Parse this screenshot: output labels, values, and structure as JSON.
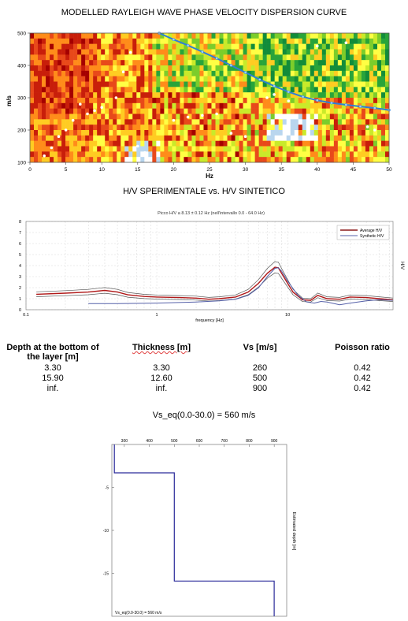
{
  "dispersion": {
    "title": "MODELLED RAYLEIGH WAVE PHASE VELOCITY DISPERSION CURVE",
    "ylabel": "m/s",
    "xlabel": "Hz",
    "yticks": [
      "500",
      "400",
      "300",
      "200",
      "100"
    ],
    "xticks": [
      "0",
      "5",
      "10",
      "15",
      "20",
      "25",
      "30",
      "35",
      "40",
      "45",
      "50"
    ]
  },
  "hv": {
    "title": "H/V SPERIMENTALE vs. H/V SINTETICO",
    "inner_title": "Picco H/V a 8.13 ± 0.12 Hz (nell'intervallo 0.0 - 64.0 Hz)",
    "xlabel": "frequency [Hz]",
    "ylabel": "H/V",
    "yticks": [
      "8",
      "7",
      "6",
      "5",
      "4",
      "3",
      "2",
      "1",
      "0"
    ],
    "xticks": [
      "0.1",
      "1",
      "10"
    ],
    "legend": [
      "Average H/V",
      "Synthetic H/V"
    ]
  },
  "table": {
    "headers": [
      "Depth at the bottom of the layer [m]",
      "Thickness [m]",
      "Vs [m/s]",
      "Poisson ratio"
    ],
    "rows": [
      [
        "3.30",
        "3.30",
        "260",
        "0.42"
      ],
      [
        "15.90",
        "12.60",
        "500",
        "0.42"
      ],
      [
        "inf.",
        "inf.",
        "900",
        "0.42"
      ]
    ]
  },
  "vseq": "Vs_eq(0.0-30.0) = 560 m/s",
  "profile": {
    "xticks": [
      "300",
      "400",
      "500",
      "600",
      "700",
      "800",
      "900"
    ],
    "yticks": [
      "-5",
      "-10",
      "-15"
    ],
    "ylabel": "Estimated depth [m]",
    "annotation": "Vs_eq(0.0-30.0) = 560 m/s"
  },
  "chart_data": [
    {
      "type": "heatmap",
      "title": "MODELLED RAYLEIGH WAVE PHASE VELOCITY DISPERSION CURVE",
      "xlabel": "Hz",
      "ylabel": "m/s",
      "xlim": [
        0,
        50
      ],
      "ylim": [
        100,
        500
      ],
      "series": [
        {
          "name": "modelled dispersion curve",
          "x": [
            18,
            20,
            22,
            24,
            26,
            28,
            30,
            32,
            34,
            36,
            38,
            40,
            42,
            44,
            46,
            48,
            50
          ],
          "y": [
            500,
            480,
            462,
            442,
            422,
            400,
            378,
            356,
            336,
            318,
            303,
            292,
            284,
            278,
            273,
            268,
            262
          ]
        }
      ]
    },
    {
      "type": "line",
      "title": "Picco H/V a 8.13 ± 0.12 Hz (nell'intervallo 0.0 - 64.0 Hz)",
      "xlabel": "frequency [Hz]",
      "ylabel": "H/V",
      "xscale": "log",
      "xlim": [
        0.1,
        64
      ],
      "ylim": [
        0,
        8
      ],
      "series": [
        {
          "name": "Average H/V",
          "x": [
            0.12,
            0.2,
            0.3,
            0.4,
            0.5,
            0.6,
            0.8,
            1,
            1.5,
            2,
            2.5,
            3,
            4,
            5,
            6,
            7,
            8,
            8.5,
            9,
            10,
            11,
            13,
            15,
            17,
            20,
            25,
            30,
            40,
            50,
            64
          ],
          "y": [
            1.4,
            1.5,
            1.6,
            1.75,
            1.6,
            1.35,
            1.2,
            1.15,
            1.1,
            1.05,
            0.95,
            1.0,
            1.15,
            1.6,
            2.4,
            3.3,
            3.85,
            3.8,
            3.3,
            2.4,
            1.6,
            0.9,
            0.85,
            1.3,
            1.0,
            0.95,
            1.15,
            1.1,
            1.0,
            0.9
          ]
        },
        {
          "name": "Synthetic H/V",
          "x": [
            0.3,
            0.5,
            1,
            2,
            3,
            4,
            5,
            6,
            7,
            8,
            8.5,
            9,
            10,
            12,
            14,
            16,
            18,
            20,
            25,
            30,
            40,
            50,
            64
          ],
          "y": [
            0.55,
            0.55,
            0.6,
            0.7,
            0.8,
            0.95,
            1.3,
            2.0,
            3.0,
            3.75,
            3.8,
            3.5,
            2.6,
            1.3,
            0.7,
            0.6,
            0.75,
            0.7,
            0.45,
            0.6,
            0.8,
            0.9,
            0.85
          ]
        }
      ]
    },
    {
      "type": "line",
      "title": "Vs profile",
      "ylabel": "Estimated depth [m]",
      "xlim": [
        250,
        950
      ],
      "ylim": [
        -20,
        0
      ],
      "series": [
        {
          "name": "Vs",
          "x": [
            260,
            260,
            500,
            500,
            900,
            900
          ],
          "y": [
            0,
            -3.3,
            -3.3,
            -15.9,
            -15.9,
            -20
          ]
        }
      ]
    }
  ]
}
